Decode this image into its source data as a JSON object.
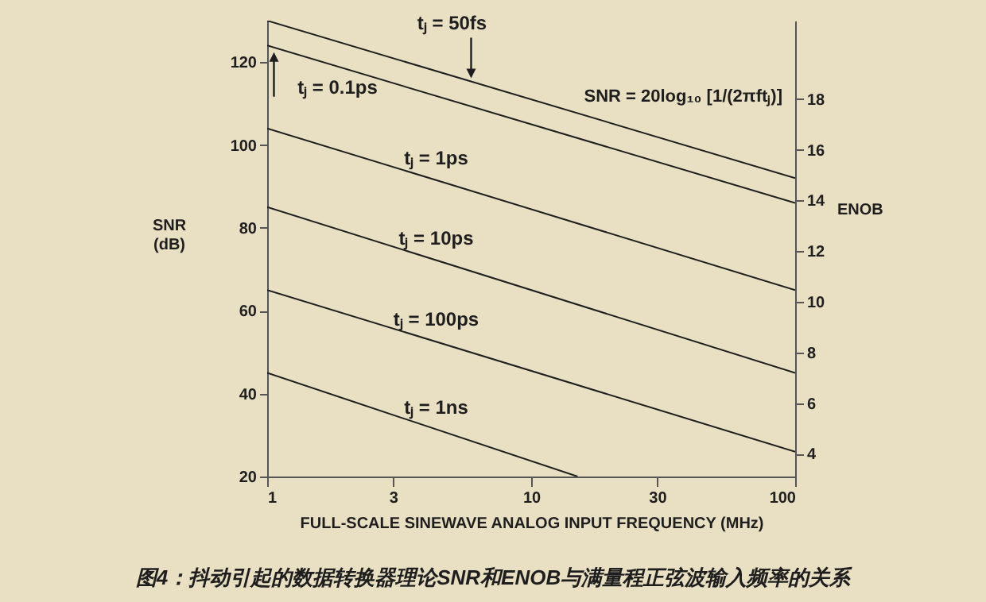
{
  "chart_data": {
    "type": "line",
    "title": "图4：抖动引起的数据转换器理论SNR和ENOB与满量程正弦波输入频率的关系",
    "xlabel": "FULL-SCALE SINEWAVE ANALOG INPUT FREQUENCY (MHz)",
    "ylabel": "SNR (dB)",
    "y2label": "ENOB",
    "log": "x",
    "xlim": [
      1,
      100
    ],
    "xticks": [
      1,
      3,
      10,
      30,
      100
    ],
    "ylim": [
      20,
      130
    ],
    "yticks": [
      20,
      40,
      60,
      80,
      100,
      120
    ],
    "y2lim": [
      3.1,
      21.1
    ],
    "y2ticks": [
      4,
      6,
      8,
      10,
      12,
      14,
      16,
      18
    ],
    "grid": false,
    "marker": "none",
    "line_style": "solid",
    "series": [
      {
        "name": "tⱼ = 50fs",
        "color": "#1e1e1e",
        "x": [
          1,
          100
        ],
        "values": [
          130,
          92
        ]
      },
      {
        "name": "tⱼ = 0.1ps",
        "color": "#1e1e1e",
        "x": [
          1,
          100
        ],
        "values": [
          124,
          86
        ]
      },
      {
        "name": "tⱼ = 1ps",
        "color": "#1e1e1e",
        "x": [
          1,
          100
        ],
        "values": [
          104,
          65
        ]
      },
      {
        "name": "tⱼ = 10ps",
        "color": "#1e1e1e",
        "x": [
          1,
          100
        ],
        "values": [
          85,
          45
        ]
      },
      {
        "name": "tⱼ = 100ps",
        "color": "#1e1e1e",
        "x": [
          1,
          100
        ],
        "values": [
          65,
          26
        ]
      },
      {
        "name": "tⱼ = 1ns",
        "color": "#1e1e1e",
        "x": [
          1,
          15
        ],
        "values": [
          45,
          20
        ]
      }
    ],
    "annotations": [
      "SNR = 20log₁₀ [1/(2πftⱼ)]"
    ]
  }
}
